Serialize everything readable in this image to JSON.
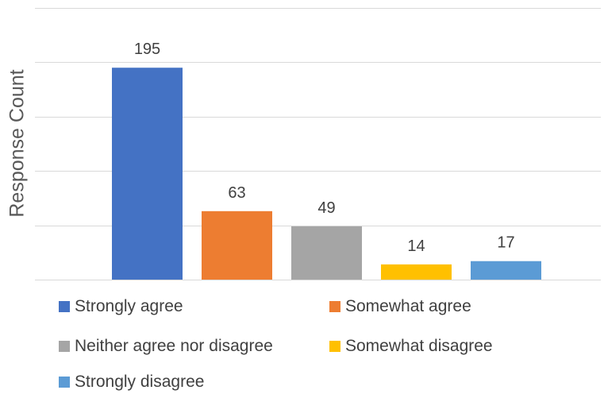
{
  "chart_data": {
    "type": "bar",
    "title": "",
    "xlabel": "",
    "ylabel": "Response Count",
    "ylim": [
      0,
      250
    ],
    "grid": true,
    "legend_position": "bottom",
    "categories": [
      "Strongly agree",
      "Somewhat agree",
      "Neither agree nor disagree",
      "Somewhat disagree",
      "Strongly disagree"
    ],
    "values": [
      195,
      63,
      49,
      14,
      17
    ],
    "colors": [
      "#4472C4",
      "#ED7D31",
      "#A5A5A5",
      "#FFC000",
      "#5B9BD5"
    ]
  }
}
